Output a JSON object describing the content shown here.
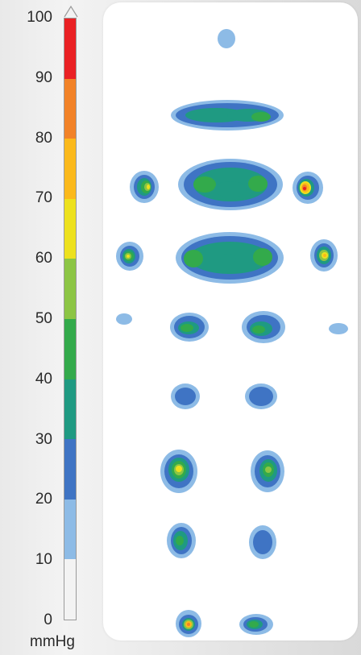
{
  "chart_data": {
    "type": "heatmap",
    "unit": "mmHg",
    "scale": {
      "min": 0,
      "max": 100,
      "ticks": [
        0,
        10,
        20,
        30,
        40,
        50,
        60,
        70,
        80,
        90,
        100
      ],
      "bands": [
        {
          "from": 0,
          "to": 10,
          "color": "#f3f3f3"
        },
        {
          "from": 10,
          "to": 20,
          "color": "#8dbbe6"
        },
        {
          "from": 20,
          "to": 30,
          "color": "#3f74c4"
        },
        {
          "from": 30,
          "to": 40,
          "color": "#1f9a82"
        },
        {
          "from": 40,
          "to": 50,
          "color": "#33aa4b"
        },
        {
          "from": 50,
          "to": 60,
          "color": "#8cc544"
        },
        {
          "from": 60,
          "to": 70,
          "color": "#ede11d"
        },
        {
          "from": 70,
          "to": 80,
          "color": "#fbb91b"
        },
        {
          "from": 80,
          "to": 90,
          "color": "#f28227"
        },
        {
          "from": 90,
          "to": 100,
          "color": "#ea2124"
        }
      ]
    }
  }
}
